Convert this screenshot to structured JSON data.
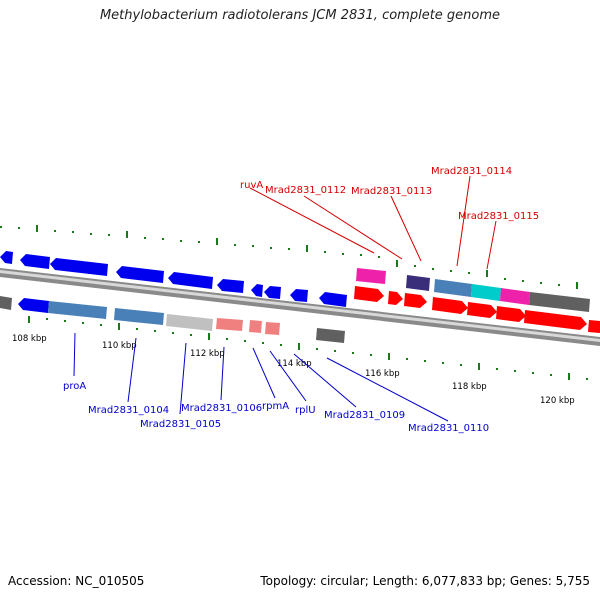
{
  "title": "Methylobacterium radiotolerans JCM 2831, complete genome",
  "footer": {
    "accession": "Accession: NC_010505",
    "summary": "Topology: circular; Length: 6,077,833 bp; Genes: 5,755"
  },
  "ruler": [
    "108 kbp",
    "110 kbp",
    "112 kbp",
    "114 kbp",
    "116 kbp",
    "118 kbp",
    "120 kbp"
  ],
  "forward_labels": [
    "ruvA",
    "Mrad2831_0112",
    "Mrad2831_0113",
    "Mrad2831_0114",
    "Mrad2831_0115"
  ],
  "reverse_labels": [
    "proA",
    "Mrad2831_0104",
    "Mrad2831_0105",
    "Mrad2831_0106",
    "rpmA",
    "rplU",
    "Mrad2831_0109",
    "Mrad2831_0110"
  ],
  "colors": {
    "forward_label": "#d40000",
    "reverse_label": "#0000cc",
    "tick": "#1a7a1a",
    "blue_gene": "#0000ee",
    "steel_gene": "#4a80b8",
    "gray_gene": "#c0c0c0",
    "salmon_gene": "#f08080",
    "dark_gray_gene": "#606060",
    "red_gene": "#ff0000",
    "magenta_gene": "#ee22aa",
    "indigo_gene": "#3a2e7a",
    "cyan_gene": "#00cccc"
  }
}
